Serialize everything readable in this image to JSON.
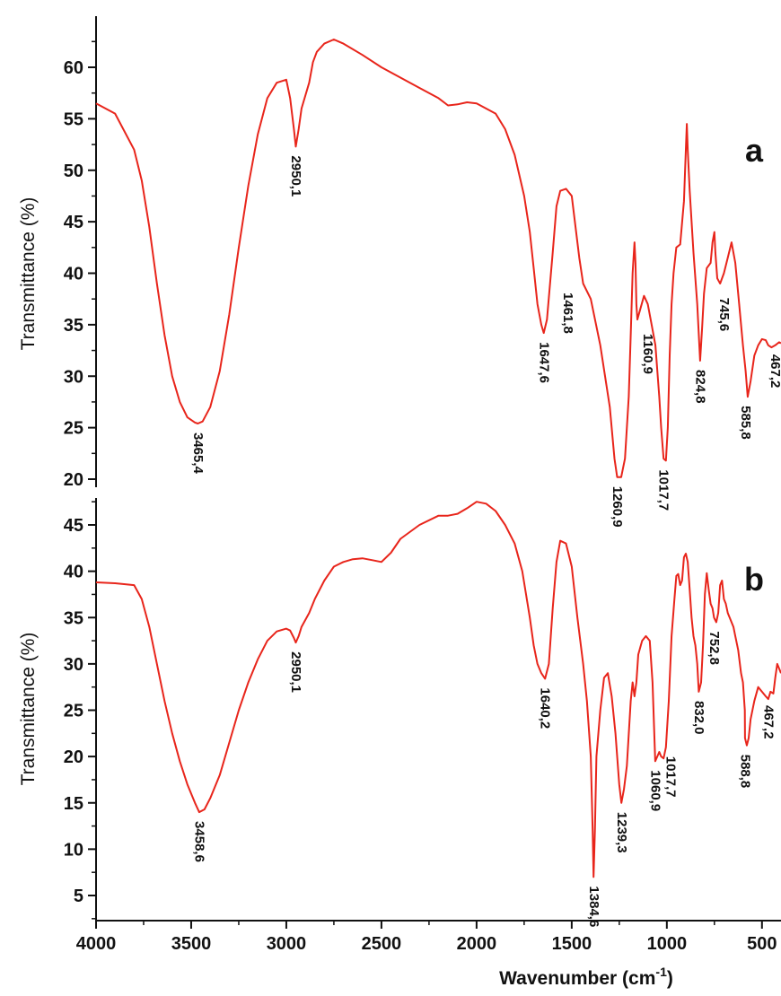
{
  "chart_data": {
    "type": "line",
    "xlabel": "Wavenumber (cm",
    "xlabel_sup": "-1",
    "xlabel_close": ")",
    "xlim": [
      4000,
      400
    ],
    "xticks": [
      4000,
      3500,
      3000,
      2500,
      2000,
      1500,
      1000,
      500
    ],
    "line_color": "#e8251b",
    "panels": [
      {
        "letter": "a",
        "ylabel": "Transmittance (%)",
        "ylim": [
          19,
          65
        ],
        "yticks": [
          20,
          25,
          30,
          35,
          40,
          45,
          50,
          55,
          60
        ],
        "series": {
          "x": [
            4000,
            3900,
            3800,
            3760,
            3720,
            3680,
            3640,
            3600,
            3560,
            3520,
            3480,
            3465,
            3440,
            3400,
            3350,
            3300,
            3250,
            3200,
            3150,
            3100,
            3050,
            3000,
            2980,
            2960,
            2950,
            2935,
            2920,
            2880,
            2860,
            2840,
            2800,
            2750,
            2700,
            2600,
            2500,
            2400,
            2300,
            2200,
            2150,
            2100,
            2050,
            2000,
            1900,
            1850,
            1800,
            1750,
            1720,
            1700,
            1680,
            1660,
            1647,
            1630,
            1600,
            1580,
            1560,
            1530,
            1500,
            1480,
            1460,
            1440,
            1400,
            1350,
            1300,
            1275,
            1261,
            1240,
            1220,
            1200,
            1190,
            1180,
            1170,
            1165,
            1160,
            1155,
            1140,
            1120,
            1100,
            1080,
            1060,
            1040,
            1030,
            1017,
            1005,
            995,
            985,
            975,
            965,
            950,
            930,
            910,
            900,
            895,
            890,
            880,
            860,
            840,
            825,
            815,
            805,
            790,
            770,
            760,
            750,
            745,
            735,
            720,
            700,
            680,
            660,
            640,
            620,
            600,
            586,
            575,
            560,
            540,
            520,
            500,
            480,
            467,
            450,
            430,
            410,
            400
          ],
          "y": [
            56.5,
            55.5,
            52.0,
            49.0,
            44.5,
            39.0,
            34.0,
            30.0,
            27.5,
            26.0,
            25.5,
            25.4,
            25.6,
            27.0,
            30.5,
            36.0,
            42.5,
            48.5,
            53.5,
            57.0,
            58.5,
            58.8,
            57.0,
            54.0,
            52.3,
            54.0,
            56.0,
            58.5,
            60.5,
            61.5,
            62.3,
            62.7,
            62.3,
            61.2,
            60.0,
            59.0,
            58.0,
            57.0,
            56.3,
            56.4,
            56.6,
            56.5,
            55.5,
            54.0,
            51.5,
            47.5,
            44.0,
            40.5,
            37.0,
            35.0,
            34.2,
            35.5,
            42.0,
            46.5,
            48.0,
            48.2,
            47.5,
            44.5,
            41.5,
            39.0,
            37.5,
            33.0,
            27.0,
            22.0,
            20.2,
            20.2,
            22.0,
            28.0,
            34.0,
            40.0,
            43.0,
            41.0,
            37.0,
            35.5,
            36.5,
            37.8,
            37.0,
            35.0,
            33.0,
            28.0,
            25.0,
            22.0,
            21.8,
            25.0,
            32.0,
            37.0,
            40.0,
            42.5,
            42.8,
            47.0,
            52.0,
            54.5,
            52.0,
            48.0,
            42.0,
            37.0,
            31.5,
            34.5,
            38.0,
            40.5,
            41.0,
            43.0,
            44.0,
            42.0,
            39.5,
            39.0,
            40.0,
            41.5,
            43.0,
            41.0,
            37.0,
            33.0,
            30.5,
            28.0,
            29.5,
            32.0,
            33.0,
            33.6,
            33.5,
            33.0,
            32.8,
            33.0,
            33.3,
            33.2
          ]
        },
        "peak_labels": [
          {
            "text": "3465,4",
            "x": 3465,
            "y": 25.4
          },
          {
            "text": "2950,1",
            "x": 2950,
            "y": 52.3
          },
          {
            "text": "1647,6",
            "x": 1647,
            "y": 34.2
          },
          {
            "text": "1461,8",
            "x": 1520,
            "y": 39.0
          },
          {
            "text": "1260,9",
            "x": 1261,
            "y": 20.2
          },
          {
            "text": "1160,9",
            "x": 1100,
            "y": 35.0
          },
          {
            "text": "1017,7",
            "x": 1017,
            "y": 21.8
          },
          {
            "text": "824,8",
            "x": 825,
            "y": 31.5
          },
          {
            "text": "745,6",
            "x": 700,
            "y": 38.5
          },
          {
            "text": "585,8",
            "x": 586,
            "y": 28.0
          },
          {
            "text": "467,2",
            "x": 430,
            "y": 33.0
          }
        ]
      },
      {
        "letter": "b",
        "ylabel": "Transmittance (%)",
        "ylim": [
          3,
          47
        ],
        "yticks": [
          5,
          10,
          15,
          20,
          25,
          30,
          35,
          40,
          45
        ],
        "series": {
          "x": [
            4000,
            3900,
            3800,
            3760,
            3720,
            3680,
            3640,
            3600,
            3560,
            3520,
            3480,
            3458,
            3430,
            3400,
            3350,
            3300,
            3250,
            3200,
            3150,
            3100,
            3050,
            3000,
            2980,
            2960,
            2950,
            2935,
            2920,
            2880,
            2850,
            2800,
            2750,
            2700,
            2650,
            2600,
            2550,
            2500,
            2450,
            2400,
            2300,
            2200,
            2150,
            2100,
            2050,
            2000,
            1950,
            1900,
            1850,
            1800,
            1760,
            1720,
            1700,
            1680,
            1660,
            1640,
            1620,
            1600,
            1580,
            1560,
            1530,
            1500,
            1470,
            1440,
            1420,
            1400,
            1390,
            1385,
            1378,
            1370,
            1350,
            1330,
            1310,
            1290,
            1270,
            1250,
            1239,
            1225,
            1210,
            1190,
            1180,
            1170,
            1160,
            1150,
            1130,
            1110,
            1090,
            1075,
            1061,
            1050,
            1040,
            1030,
            1017,
            1005,
            990,
            975,
            960,
            950,
            940,
            930,
            920,
            910,
            900,
            890,
            880,
            870,
            860,
            850,
            840,
            832,
            820,
            810,
            800,
            790,
            780,
            770,
            760,
            752,
            740,
            730,
            720,
            710,
            700,
            690,
            680,
            670,
            650,
            640,
            625,
            610,
            600,
            590,
            589,
            580,
            570,
            560,
            540,
            520,
            500,
            480,
            467,
            455,
            440,
            430,
            420,
            410,
            400
          ],
          "y": [
            38.8,
            38.7,
            38.5,
            37.0,
            34.0,
            30.0,
            26.0,
            22.5,
            19.5,
            17.0,
            15.0,
            14.0,
            14.3,
            15.5,
            18.0,
            21.5,
            25.0,
            28.0,
            30.5,
            32.5,
            33.5,
            33.8,
            33.6,
            32.8,
            32.3,
            33.0,
            34.0,
            35.5,
            37.0,
            39.0,
            40.5,
            41.0,
            41.3,
            41.4,
            41.2,
            41.0,
            42.0,
            43.5,
            45.0,
            46.0,
            46.0,
            46.2,
            46.8,
            47.5,
            47.3,
            46.5,
            45.0,
            43.0,
            40.0,
            35.0,
            32.0,
            30.0,
            29.0,
            28.4,
            30.0,
            36.0,
            41.0,
            43.3,
            43.0,
            40.5,
            35.0,
            30.0,
            26.0,
            20.0,
            12.0,
            7.0,
            12.0,
            20.0,
            25.0,
            28.5,
            29.0,
            26.5,
            22.5,
            17.0,
            15.0,
            16.5,
            19.0,
            26.0,
            28.0,
            26.5,
            28.0,
            31.0,
            32.5,
            33.0,
            32.5,
            28.0,
            19.5,
            20.0,
            20.5,
            20.0,
            19.8,
            21.0,
            26.0,
            33.0,
            37.0,
            39.5,
            39.7,
            38.5,
            39.0,
            41.5,
            41.9,
            41.0,
            38.0,
            35.0,
            33.0,
            32.0,
            30.0,
            27.0,
            28.0,
            32.0,
            37.5,
            39.8,
            38.0,
            36.5,
            36.0,
            35.0,
            34.5,
            35.5,
            38.5,
            39.0,
            37.0,
            36.5,
            35.5,
            35.0,
            34.0,
            33.0,
            31.5,
            29.0,
            28.0,
            25.0,
            22.0,
            21.2,
            22.0,
            24.0,
            26.0,
            27.5,
            27.0,
            26.5,
            26.2,
            27.0,
            26.8,
            28.5,
            30.0,
            29.5,
            29.0
          ]
        },
        "peak_labels": [
          {
            "text": "3458,6",
            "x": 3458,
            "y": 14.0
          },
          {
            "text": "2950,1",
            "x": 2950,
            "y": 32.3
          },
          {
            "text": "1640,2",
            "x": 1640,
            "y": 28.4
          },
          {
            "text": "1384,6",
            "x": 1385,
            "y": 7.0
          },
          {
            "text": "1239,3",
            "x": 1239,
            "y": 15.0
          },
          {
            "text": "1060,9",
            "x": 1061,
            "y": 19.5
          },
          {
            "text": "1017,7",
            "x": 980,
            "y": 21.0
          },
          {
            "text": "832,0",
            "x": 832,
            "y": 27.0
          },
          {
            "text": "752,8",
            "x": 752,
            "y": 34.5
          },
          {
            "text": "588,8",
            "x": 589,
            "y": 21.2
          },
          {
            "text": "467,2",
            "x": 467,
            "y": 26.5
          }
        ]
      }
    ]
  }
}
